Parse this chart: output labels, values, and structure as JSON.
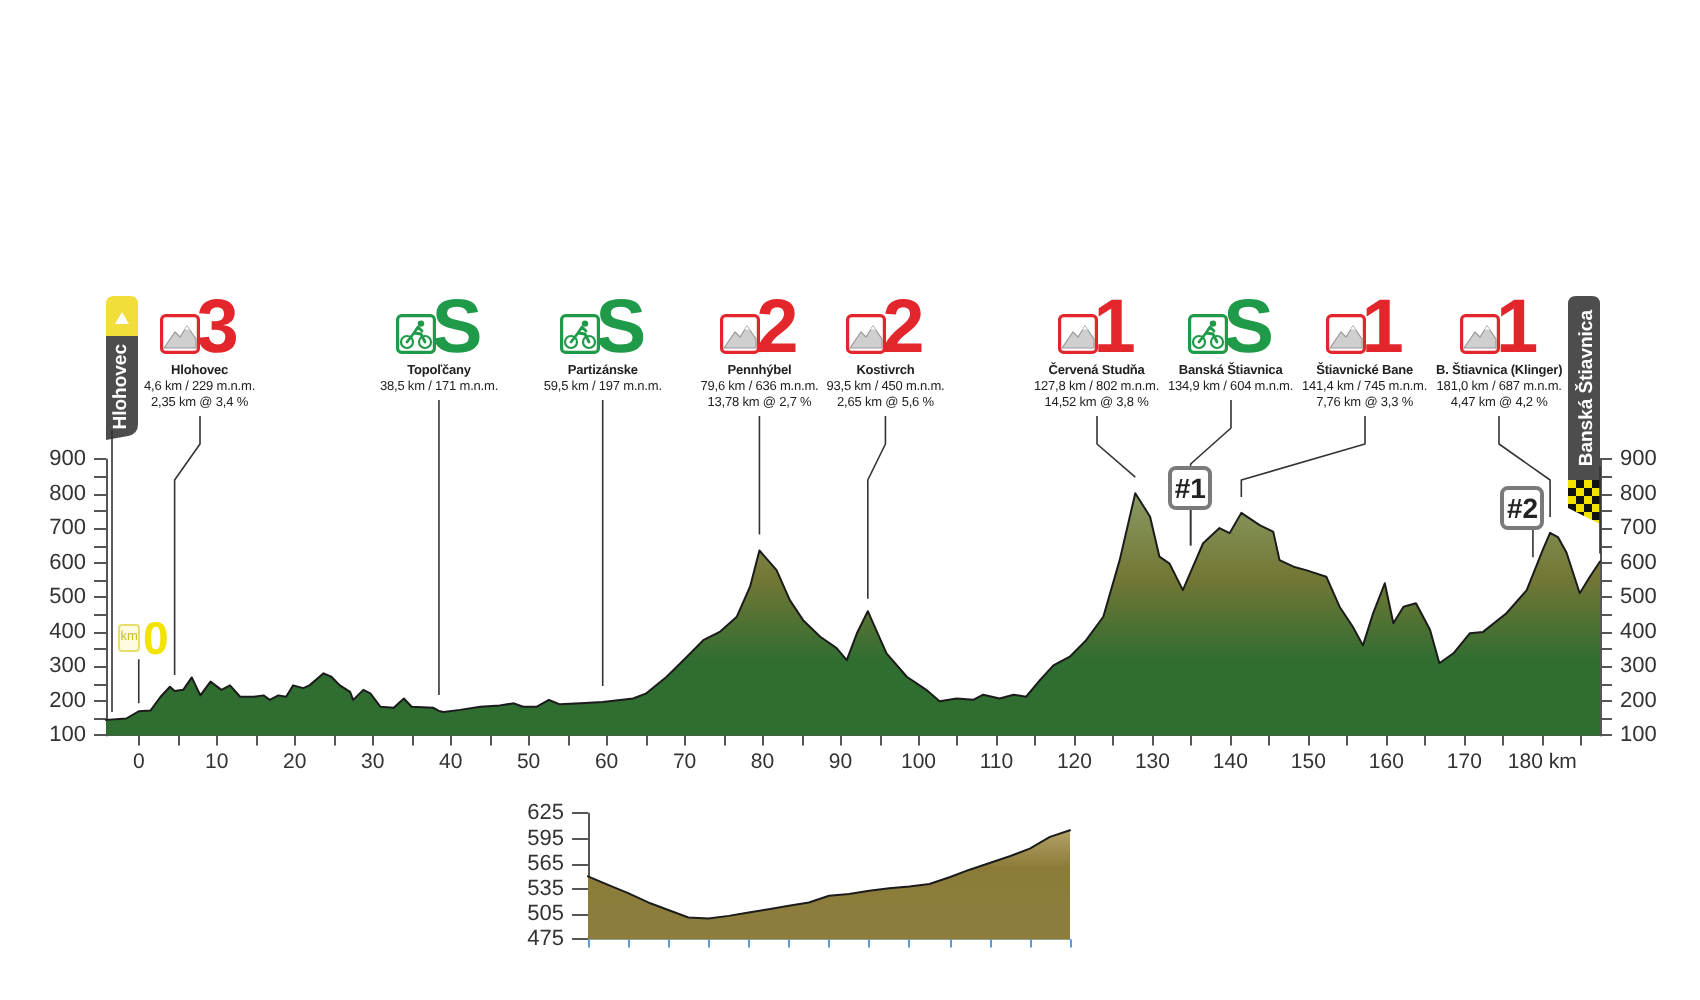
{
  "chart_data": [
    {
      "type": "area",
      "x": [
        -4.2,
        -1.6,
        0,
        1.5,
        2.8,
        4.0,
        4.6,
        5.7,
        6.8,
        7.9,
        9.2,
        10.6,
        11.7,
        13.0,
        14.7,
        16.0,
        16.8,
        17.9,
        18.9,
        19.8,
        21.1,
        21.9,
        23.7,
        24.7,
        25.8,
        27.1,
        27.5,
        28.8,
        29.7,
        31.0,
        32.7,
        34.0,
        35.0,
        37.8,
        38.5,
        39.1,
        41.2,
        43.8,
        46.3,
        48.1,
        49.3,
        51.0,
        52.6,
        54.0,
        56.6,
        59.5,
        63.4,
        65.1,
        67.7,
        70.3,
        72.4,
        74.5,
        76.7,
        78.4,
        79.6,
        81.8,
        83.5,
        85.2,
        87.4,
        89.5,
        90.8,
        92.1,
        93.5,
        95.9,
        98.5,
        101.0,
        102.7,
        104.9,
        107.0,
        108.3,
        110.4,
        112.2,
        113.8,
        115.6,
        117.3,
        119.4,
        121.5,
        123.7,
        125.8,
        127.8,
        129.7,
        130.9,
        132.2,
        133.9,
        135.2,
        136.5,
        138.6,
        139.9,
        141.4,
        143.8,
        145.5,
        146.3,
        148.1,
        149.7,
        152.3,
        154.0,
        155.7,
        157.0,
        158.3,
        159.8,
        160.9,
        162.2,
        163.8,
        165.6,
        166.8,
        168.6,
        170.7,
        172.4,
        175.4,
        178.0,
        180.1,
        181.0,
        182.0,
        183.1,
        184.8,
        186.1,
        187.4
      ],
      "values": [
        145,
        149,
        170,
        172,
        212,
        241,
        229,
        232,
        268,
        216,
        256,
        232,
        245,
        212,
        212,
        216,
        203,
        216,
        212,
        245,
        237,
        245,
        280,
        270,
        245,
        226,
        203,
        232,
        222,
        183,
        180,
        207,
        183,
        180,
        171,
        168,
        174,
        183,
        187,
        193,
        183,
        183,
        203,
        190,
        193,
        197,
        207,
        222,
        270,
        328,
        376,
        400,
        444,
        531,
        636,
        579,
        492,
        434,
        386,
        353,
        318,
        396,
        460,
        338,
        270,
        232,
        199,
        207,
        203,
        218,
        207,
        218,
        212,
        261,
        303,
        328,
        376,
        444,
        608,
        802,
        734,
        618,
        598,
        521,
        589,
        657,
        701,
        686,
        745,
        709,
        690,
        608,
        589,
        579,
        560,
        473,
        415,
        361,
        454,
        541,
        425,
        473,
        483,
        406,
        309,
        338,
        396,
        400,
        454,
        521,
        640,
        687,
        675,
        630,
        512,
        560,
        604
      ],
      "color": "#2f6d31",
      "xlim": [
        -4.2,
        187.4
      ],
      "xticks": [
        0,
        {
          "value": 5,
          "label": null
        },
        10,
        {
          "value": 15,
          "label": null
        },
        20,
        {
          "value": 25,
          "label": null
        },
        30,
        {
          "value": 35,
          "label": null
        },
        40,
        {
          "value": 45,
          "label": null
        },
        50,
        {
          "value": 55,
          "label": null
        },
        60,
        {
          "value": 65,
          "label": null
        },
        70,
        {
          "value": 75,
          "label": null
        },
        80,
        {
          "value": 85,
          "label": null
        },
        90,
        {
          "value": 95,
          "label": null
        },
        100,
        {
          "value": 105,
          "label": null
        },
        110,
        {
          "value": 115,
          "label": null
        },
        120,
        {
          "value": 125,
          "label": null
        },
        130,
        {
          "value": 135,
          "label": null
        },
        140,
        {
          "value": 145,
          "label": null
        },
        150,
        {
          "value": 155,
          "label": null
        },
        160,
        {
          "value": 165,
          "label": null
        },
        170,
        {
          "value": 175,
          "label": null
        },
        {
          "value": 180,
          "label": "180 km"
        },
        {
          "value": 185,
          "label": null
        }
      ],
      "ylim": [
        100,
        900
      ],
      "yticks": [
        100,
        {
          "value": 150,
          "label": null
        },
        200,
        {
          "value": 250,
          "label": null
        },
        300,
        {
          "value": 350,
          "label": null
        },
        400,
        {
          "value": 450,
          "label": null
        },
        500,
        {
          "value": 550,
          "label": null
        },
        600,
        {
          "value": 650,
          "label": null
        },
        700,
        {
          "value": 750,
          "label": null
        },
        800,
        {
          "value": 850,
          "label": null
        },
        900
      ],
      "y2lim": [
        100,
        900
      ],
      "y2ticks": [
        100,
        {
          "value": 150,
          "label": null
        },
        200,
        {
          "value": 250,
          "label": null
        },
        300,
        {
          "value": 350,
          "label": null
        },
        400,
        {
          "value": 450,
          "label": null
        },
        500,
        {
          "value": 550,
          "label": null
        },
        600,
        {
          "value": 650,
          "label": null
        },
        700,
        {
          "value": 750,
          "label": null
        },
        800,
        {
          "value": 850,
          "label": null
        },
        900
      ],
      "annotations": [
        {
          "text": "Hlohovec",
          "x": -4.2,
          "y": 145
        },
        {
          "text": "km0",
          "x": 0,
          "y": 170
        },
        {
          "text": "3\nHlohovec\n4,6 km / 229 m.n.m.\n2,35 km @ 3,4 %",
          "x": 4.6,
          "y": 229
        },
        {
          "text": "S\nTopoľčany\n38,5 km / 171 m.n.m.",
          "x": 38.5,
          "y": 171
        },
        {
          "text": "S\nPartizánske\n59,5 km / 197 m.n.m.",
          "x": 59.5,
          "y": 197
        },
        {
          "text": "2\nPennhýbel\n79,6 km / 636 m.n.m.\n13,78 km @ 2,7 %",
          "x": 79.6,
          "y": 636
        },
        {
          "text": "2\nKostivrch\n93,5 km / 450 m.n.m.\n2,65 km @ 5,6 %",
          "x": 93.5,
          "y": 450
        },
        {
          "text": "1\nČervená Studňa\n127,8 km / 802 m.n.m.\n14,52 km @ 3,8 %",
          "x": 127.8,
          "y": 802
        },
        {
          "text": "S\nBanská Štiavnica\n134,9 km / 604 m.n.m.",
          "x": 134.9,
          "y": 604
        },
        {
          "text": "#1",
          "x": 134.9,
          "y": 604
        },
        {
          "text": "1\nŠtiavnické Bane\n141,4 km / 745 m.n.m.\n7,76 km @ 3,3 %",
          "x": 141.4,
          "y": 745
        },
        {
          "text": "#2",
          "x": 178.8,
          "y": 570
        },
        {
          "text": "1\nB. Štiavnica (Klinger)\n181,0 km / 687 m.n.m.\n4,47 km @ 4,2 %",
          "x": 181.0,
          "y": 687
        },
        {
          "text": "Banská Štiavnica",
          "x": 187.4,
          "y": 604
        }
      ]
    },
    {
      "type": "area",
      "categories": [
        null,
        null,
        null,
        null,
        null,
        null,
        null,
        null,
        null,
        null,
        null,
        null,
        null,
        null,
        null,
        null,
        null,
        null,
        null,
        null,
        null,
        null,
        null,
        null,
        null
      ],
      "values": [
        550,
        540,
        530,
        519,
        510,
        501,
        500,
        503,
        507,
        511,
        515,
        519,
        527,
        529,
        533,
        536,
        538,
        541,
        549,
        558,
        566,
        574,
        583,
        597,
        605
      ],
      "color": "#8c7d3c",
      "ylim": [
        475,
        625
      ],
      "yticks": [
        475,
        505,
        535,
        565,
        595,
        625
      ]
    }
  ]
}
